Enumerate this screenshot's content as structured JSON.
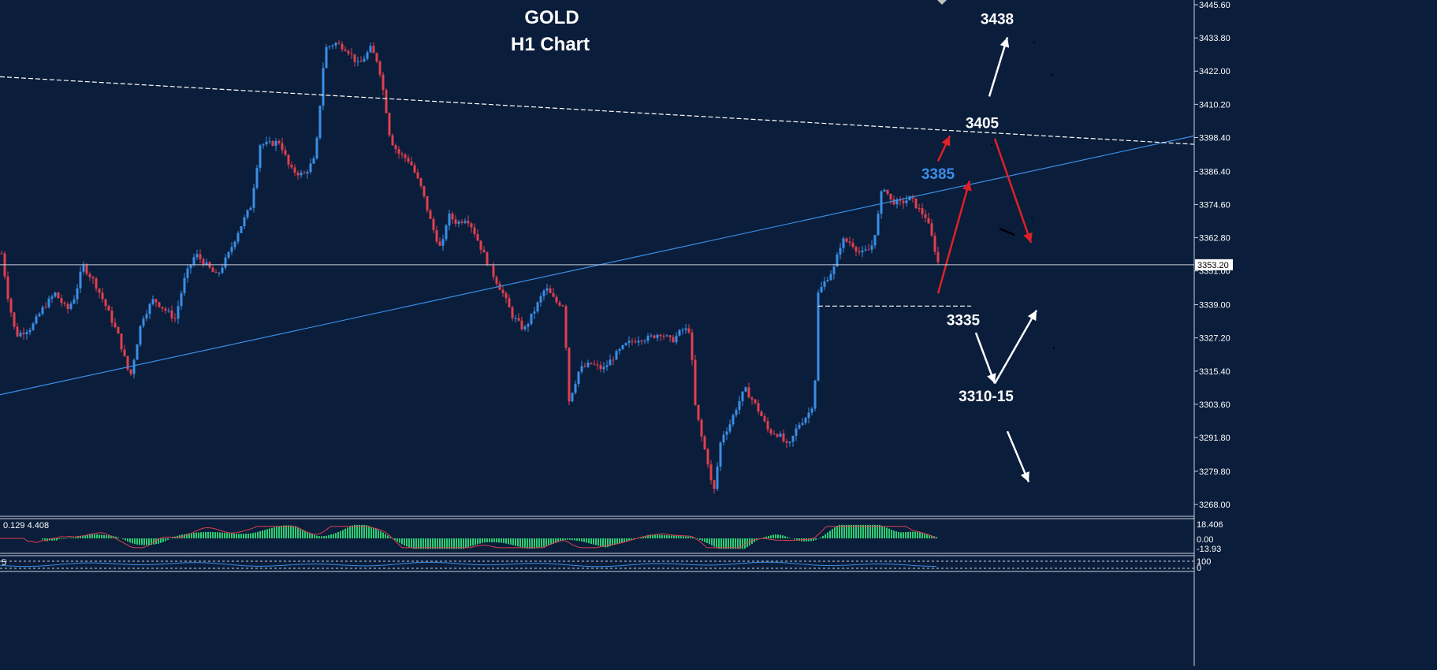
{
  "chart_data": {
    "type": "candlestick",
    "title": "GOLD",
    "subtitle": "H1 Chart",
    "symbol": "GOLD",
    "timeframe": "H1",
    "y_ticks": [
      "3445.60",
      "3433.80",
      "3422.00",
      "3410.20",
      "3398.40",
      "3386.40",
      "3374.60",
      "3362.80",
      "3351.00",
      "3339.00",
      "3327.20",
      "3315.40",
      "3303.60",
      "3291.80",
      "3279.80",
      "3268.00"
    ],
    "ylim": [
      3266.0,
      3447.0
    ],
    "current_price": "3353.20",
    "colors": {
      "background": "#0a1d3a",
      "bull": "#3a8ee6",
      "bear": "#e0404f",
      "trendline": "#3a8ee6",
      "annotation_red": "#e02028",
      "annotation_white": "#ffffff",
      "macd_hist": "#2ecc71",
      "macd_signal": "#e0404f",
      "axis_text": "#ffffff"
    },
    "path": [
      [
        0,
        3361
      ],
      [
        10,
        3342
      ],
      [
        20,
        3328
      ],
      [
        40,
        3331
      ],
      [
        55,
        3338
      ],
      [
        70,
        3343
      ],
      [
        85,
        3337
      ],
      [
        95,
        3342
      ],
      [
        105,
        3353
      ],
      [
        120,
        3347
      ],
      [
        135,
        3338
      ],
      [
        150,
        3328
      ],
      [
        165,
        3313
      ],
      [
        180,
        3334
      ],
      [
        195,
        3341
      ],
      [
        210,
        3337
      ],
      [
        222,
        3334
      ],
      [
        235,
        3349
      ],
      [
        248,
        3357
      ],
      [
        262,
        3353
      ],
      [
        275,
        3349
      ],
      [
        290,
        3357
      ],
      [
        302,
        3365
      ],
      [
        318,
        3374
      ],
      [
        330,
        3396
      ],
      [
        340,
        3396
      ],
      [
        355,
        3397
      ],
      [
        368,
        3387
      ],
      [
        385,
        3385
      ],
      [
        400,
        3391
      ],
      [
        405,
        3407
      ],
      [
        412,
        3430
      ],
      [
        425,
        3432
      ],
      [
        440,
        3430
      ],
      [
        455,
        3424
      ],
      [
        470,
        3430
      ],
      [
        480,
        3425
      ],
      [
        488,
        3412
      ],
      [
        495,
        3398
      ],
      [
        505,
        3393
      ],
      [
        520,
        3390
      ],
      [
        535,
        3380
      ],
      [
        548,
        3367
      ],
      [
        560,
        3358
      ],
      [
        568,
        3371
      ],
      [
        580,
        3368
      ],
      [
        592,
        3370
      ],
      [
        600,
        3366
      ],
      [
        612,
        3358
      ],
      [
        625,
        3350
      ],
      [
        638,
        3343
      ],
      [
        650,
        3335
      ],
      [
        665,
        3330
      ],
      [
        678,
        3337
      ],
      [
        692,
        3345
      ],
      [
        705,
        3340
      ],
      [
        715,
        3339
      ],
      [
        722,
        3305
      ],
      [
        735,
        3316
      ],
      [
        750,
        3318
      ],
      [
        765,
        3316
      ],
      [
        780,
        3321
      ],
      [
        795,
        3325
      ],
      [
        810,
        3327
      ],
      [
        822,
        3327
      ],
      [
        838,
        3329
      ],
      [
        852,
        3326
      ],
      [
        865,
        3330
      ],
      [
        875,
        3330
      ],
      [
        882,
        3303
      ],
      [
        890,
        3292
      ],
      [
        898,
        3283
      ],
      [
        905,
        3271
      ],
      [
        915,
        3292
      ],
      [
        925,
        3296
      ],
      [
        935,
        3303
      ],
      [
        945,
        3309
      ],
      [
        955,
        3305
      ],
      [
        965,
        3300
      ],
      [
        975,
        3294
      ],
      [
        988,
        3293
      ],
      [
        1000,
        3288
      ],
      [
        1012,
        3296
      ],
      [
        1025,
        3300
      ],
      [
        1033,
        3305
      ],
      [
        1038,
        3343
      ],
      [
        1048,
        3348
      ],
      [
        1058,
        3352
      ],
      [
        1068,
        3362
      ],
      [
        1080,
        3361
      ],
      [
        1092,
        3357
      ],
      [
        1105,
        3359
      ],
      [
        1112,
        3367
      ],
      [
        1120,
        3382
      ],
      [
        1130,
        3376
      ],
      [
        1142,
        3375
      ],
      [
        1155,
        3377
      ],
      [
        1165,
        3373
      ],
      [
        1175,
        3370
      ],
      [
        1183,
        3362
      ],
      [
        1190,
        3354
      ]
    ],
    "trend_lines": [
      {
        "type": "support-resistance",
        "from": [
          0,
          3307
        ],
        "to": [
          1515,
          3399
        ]
      },
      {
        "type": "dashed-resistance",
        "from": [
          0,
          3420
        ],
        "to": [
          1515,
          3396
        ]
      },
      {
        "type": "dashed-support",
        "from": [
          1038,
          3338.5
        ],
        "to": [
          1232,
          3338.5
        ]
      }
    ],
    "price_labels": [
      {
        "text": "3438",
        "price": 3441,
        "color": "white"
      },
      {
        "text": "3405",
        "price": 3404,
        "color": "white"
      },
      {
        "text": "3385",
        "price": 3386,
        "color": "blue"
      },
      {
        "text": "3335",
        "price": 3334,
        "color": "white"
      },
      {
        "text": "3310-15",
        "price": 3307,
        "color": "white"
      }
    ],
    "arrows": [
      {
        "color": "red",
        "from": [
          1190,
          3343
        ],
        "to": [
          1230,
          3383
        ]
      },
      {
        "color": "red",
        "from": [
          1190,
          3390
        ],
        "to": [
          1205,
          3399
        ]
      },
      {
        "color": "red",
        "from": [
          1262,
          3398
        ],
        "to": [
          1308,
          3361
        ]
      },
      {
        "color": "white",
        "from": [
          1255,
          3413
        ],
        "to": [
          1278,
          3434
        ]
      },
      {
        "color": "white",
        "from": [
          1238,
          3329
        ],
        "to": [
          1262,
          3311
        ]
      },
      {
        "color": "white",
        "from": [
          1262,
          3311
        ],
        "to": [
          1315,
          3337
        ]
      },
      {
        "color": "white",
        "from": [
          1278,
          3294
        ],
        "to": [
          1305,
          3276
        ]
      }
    ],
    "macd": {
      "label": "0.129 4.408",
      "scale_labels": [
        "18.406",
        "0.00",
        "-13.93"
      ]
    },
    "lower_panel": {
      "label": "5",
      "scale_labels": [
        "100",
        "0"
      ]
    }
  }
}
